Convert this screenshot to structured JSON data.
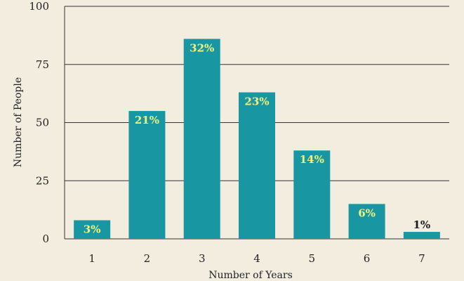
{
  "chart_data": {
    "type": "bar",
    "title": "",
    "xlabel": "Number of Years",
    "ylabel": "Number of People",
    "categories": [
      "1",
      "2",
      "3",
      "4",
      "5",
      "6",
      "7"
    ],
    "values": [
      8,
      55,
      86,
      63,
      38,
      15,
      3
    ],
    "data_labels": [
      "3%",
      "21%",
      "32%",
      "23%",
      "14%",
      "6%",
      "1%"
    ],
    "ylim": [
      0,
      100
    ],
    "yticks": [
      0,
      25,
      50,
      75,
      100
    ],
    "grid": "horizontal",
    "legend": "none",
    "colors": {
      "background": "#f3ede0",
      "bar": "#1897a2",
      "label_inside": "#f2f27a",
      "label_outside": "#1a1a1a",
      "gridline": "#333333",
      "text": "#222222"
    }
  }
}
